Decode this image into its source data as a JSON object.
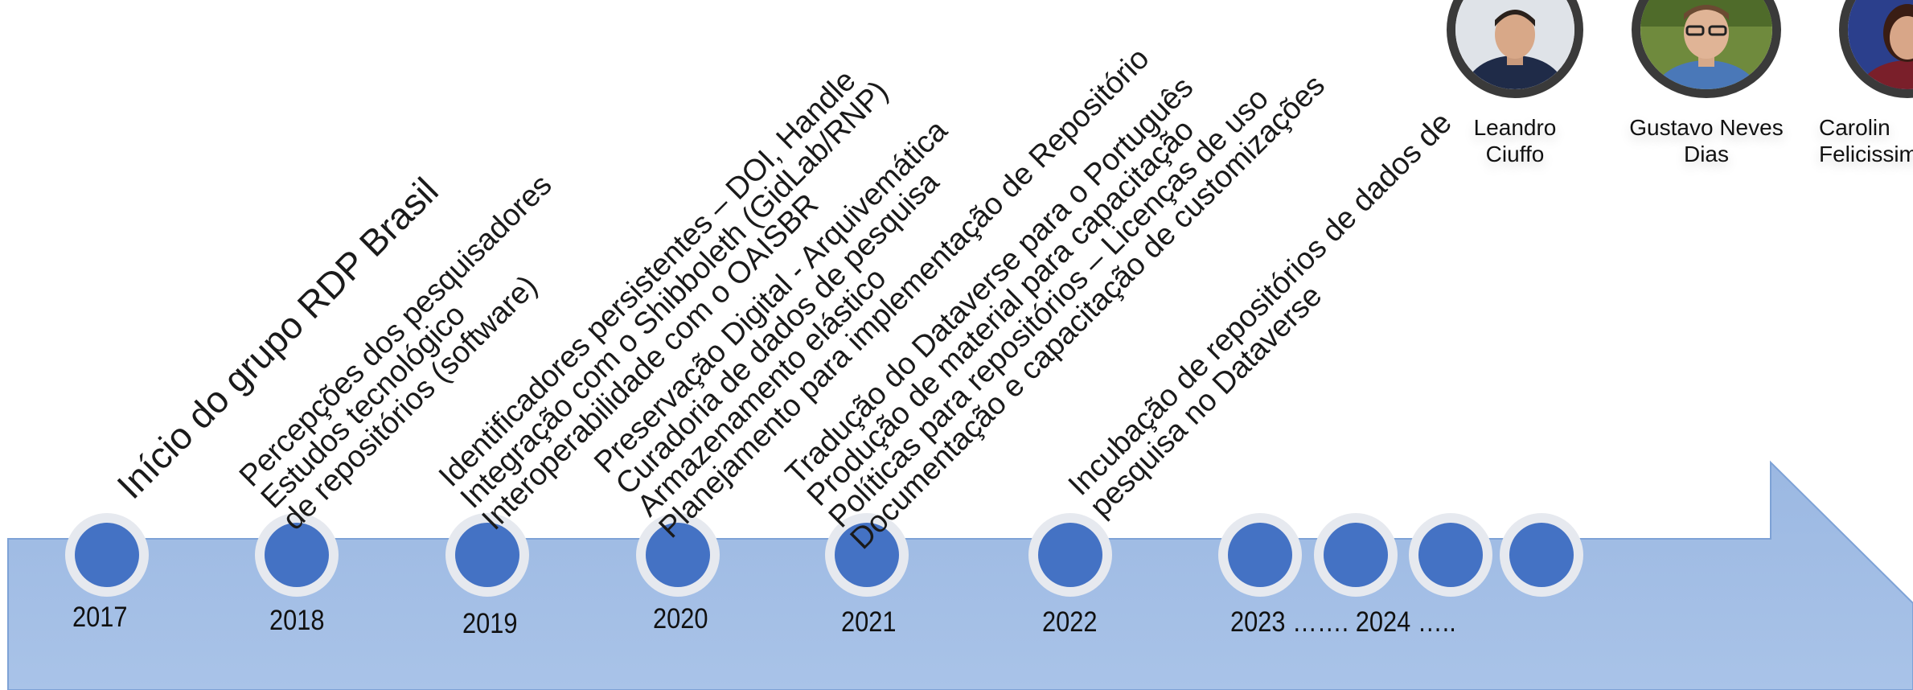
{
  "colors": {
    "arrow_fill": "#a4bfe4",
    "arrow_stroke": "#7ea2d6",
    "dot_fill": "#4472c4",
    "dot_ring": "#e6e9ef",
    "text": "#1a1a1a"
  },
  "timeline": {
    "milestones": [
      {
        "year": "2017",
        "lines": [
          "Início do grupo RDP Brasil"
        ]
      },
      {
        "year": "2018",
        "lines": [
          "Percepções dos pesquisadores",
          "Estudos tecnológico",
          "de repositórios (software)"
        ]
      },
      {
        "year": "2019",
        "lines": [
          "Identificadores persistentes – DOI, Handle",
          "Integração com o Shibboleth (GidLab/RNP)",
          "Interoperabilidade com o OAISBR"
        ]
      },
      {
        "year": "2020",
        "lines": [
          "Preservação Digital - Arquivemática",
          "Curadoria de dados de pesquisa",
          "Armazenamento elástico",
          "Planejamento para implementação de Repositório"
        ]
      },
      {
        "year": "2021",
        "lines": [
          "Tradução do Dataverse para o Português",
          "Produção de material para capacitação",
          "Políticas para repositórios – Licenças de uso",
          "Documentação e capacitação de customizações"
        ]
      },
      {
        "year": "2022",
        "lines": [
          "Incubação de repositórios de dados de",
          "pesquisa no Dataverse"
        ]
      }
    ],
    "tail_label": "2023 ……. 2024 ….."
  },
  "people": [
    {
      "name_lines": [
        "Leandro",
        "Ciuffo"
      ],
      "icon": "person-photo"
    },
    {
      "name_lines": [
        "Gustavo Neves",
        "Dias"
      ],
      "icon": "person-photo"
    },
    {
      "name_lines": [
        "Carolin",
        "Felicissim"
      ],
      "icon": "person-photo"
    }
  ]
}
